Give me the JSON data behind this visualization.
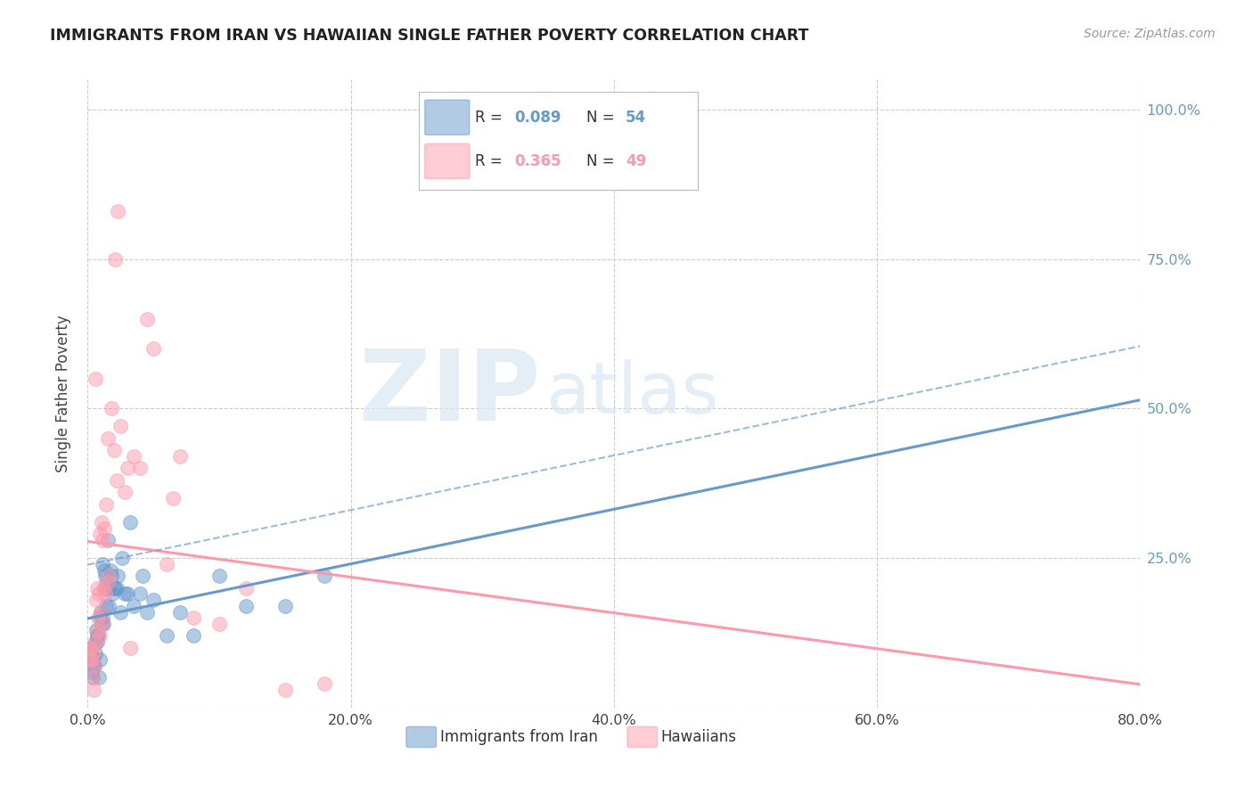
{
  "title": "IMMIGRANTS FROM IRAN VS HAWAIIAN SINGLE FATHER POVERTY CORRELATION CHART",
  "source": "Source: ZipAtlas.com",
  "ylabel": "Single Father Poverty",
  "x_tick_labels": [
    "0.0%",
    "20.0%",
    "40.0%",
    "60.0%",
    "80.0%"
  ],
  "x_tick_values": [
    0,
    20,
    40,
    60,
    80
  ],
  "y_tick_labels_right": [
    "100.0%",
    "75.0%",
    "50.0%",
    "25.0%"
  ],
  "y_tick_values_right": [
    100,
    75,
    50,
    25
  ],
  "y_tick_values": [
    0,
    25,
    50,
    75,
    100
  ],
  "xlim": [
    0,
    80
  ],
  "ylim": [
    0,
    105
  ],
  "legend_label1": "Immigrants from Iran",
  "legend_label2": "Hawaiians",
  "legend_r1": "0.089",
  "legend_n1": "54",
  "legend_r2": "0.365",
  "legend_n2": "49",
  "color_blue": "#6699CC",
  "color_pink": "#FF99AA",
  "watermark_big": "ZIP",
  "watermark_small": "atlas",
  "blue_x": [
    0.2,
    0.3,
    0.4,
    0.5,
    0.6,
    0.7,
    0.8,
    0.9,
    1.0,
    1.1,
    1.2,
    1.3,
    1.4,
    1.5,
    1.6,
    1.7,
    1.8,
    1.9,
    2.0,
    2.2,
    2.5,
    2.8,
    3.0,
    3.5,
    4.0,
    4.5,
    5.0,
    6.0,
    7.0,
    8.0,
    10.0,
    12.0,
    15.0,
    18.0,
    0.15,
    0.25,
    0.35,
    0.45,
    0.55,
    0.65,
    0.75,
    0.85,
    0.95,
    1.05,
    1.15,
    1.25,
    1.35,
    1.45,
    1.55,
    2.1,
    2.3,
    2.6,
    3.2,
    4.2
  ],
  "blue_y": [
    8,
    6,
    5,
    7,
    9,
    11,
    12,
    8,
    16,
    15,
    14,
    22,
    17,
    20,
    17,
    23,
    22,
    19,
    20,
    20,
    16,
    19,
    19,
    17,
    19,
    16,
    18,
    12,
    16,
    12,
    22,
    17,
    17,
    22,
    10,
    9,
    8,
    7,
    11,
    13,
    12,
    5,
    15,
    14,
    24,
    23,
    20,
    21,
    28,
    20,
    22,
    25,
    31,
    22
  ],
  "pink_x": [
    0.2,
    0.3,
    0.4,
    0.5,
    0.6,
    0.7,
    0.8,
    0.9,
    1.0,
    1.1,
    1.2,
    1.3,
    1.4,
    1.5,
    1.6,
    1.8,
    2.0,
    2.2,
    2.5,
    2.8,
    3.0,
    3.5,
    4.0,
    4.5,
    5.0,
    6.0,
    6.5,
    7.0,
    8.0,
    10.0,
    12.0,
    15.0,
    18.0,
    0.15,
    0.25,
    0.35,
    0.45,
    0.55,
    0.65,
    0.75,
    0.85,
    0.95,
    1.05,
    1.15,
    1.25,
    1.55,
    2.1,
    2.3,
    3.2
  ],
  "pink_y": [
    10,
    8,
    9,
    7,
    11,
    13,
    15,
    12,
    16,
    14,
    20,
    19,
    34,
    21,
    22,
    50,
    43,
    38,
    47,
    36,
    40,
    42,
    40,
    65,
    60,
    24,
    35,
    42,
    15,
    14,
    20,
    3,
    4,
    8,
    10,
    5,
    3,
    55,
    18,
    20,
    19,
    29,
    31,
    28,
    30,
    45,
    75,
    83,
    10
  ]
}
